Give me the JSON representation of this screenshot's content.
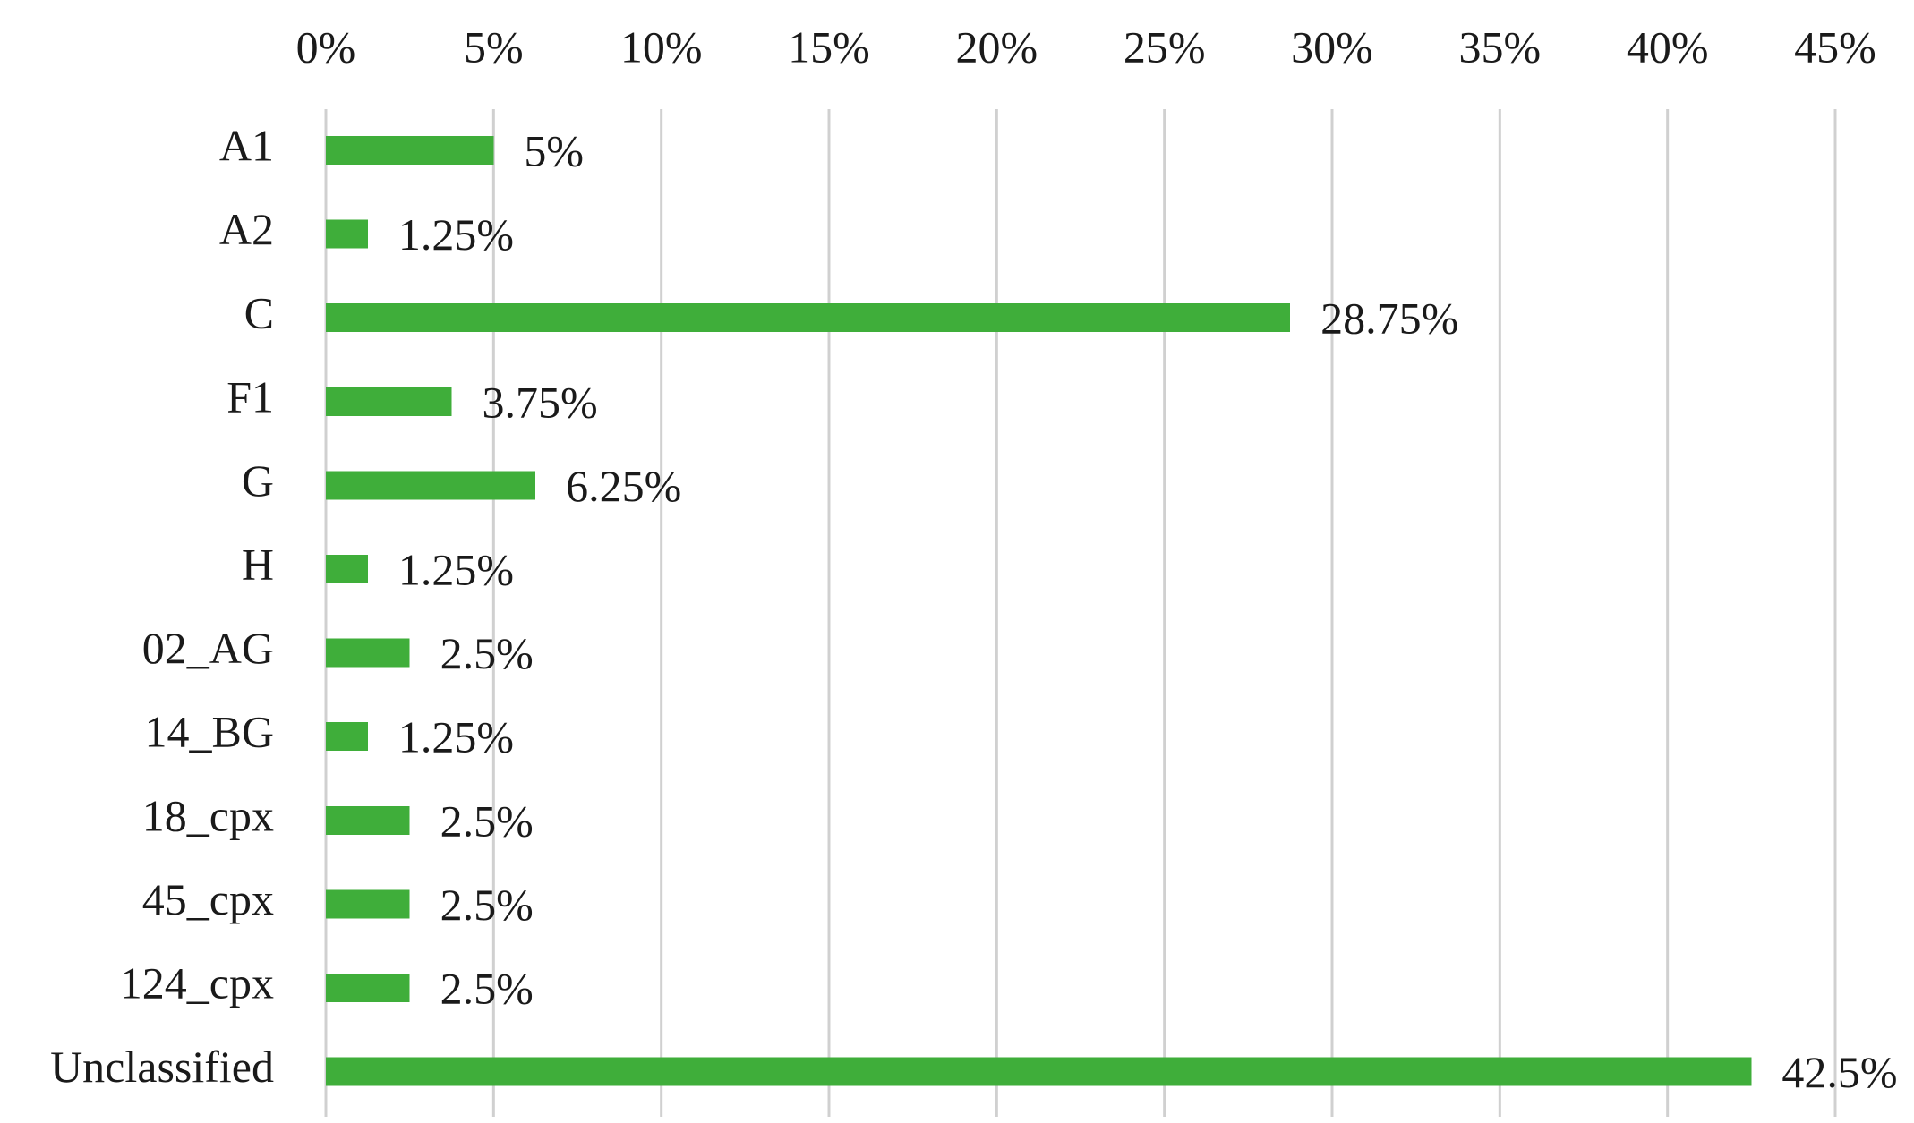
{
  "chart_data": {
    "type": "bar",
    "orientation": "horizontal",
    "axis_position": "top",
    "grid": true,
    "legend": "none",
    "bar_color": "#3fae3a",
    "grid_color": "#d0d0d0",
    "text_color": "#1a1a1a",
    "categories": [
      "A1",
      "A2",
      "C",
      "F1",
      "G",
      "H",
      "02_AG",
      "14_BG",
      "18_cpx",
      "45_cpx",
      "124_cpx",
      "Unclassified"
    ],
    "values": [
      5,
      1.25,
      28.75,
      3.75,
      6.25,
      1.25,
      2.5,
      1.25,
      2.5,
      2.5,
      2.5,
      42.5
    ],
    "data_labels": [
      "5%",
      "1.25%",
      "28.75%",
      "3.75%",
      "6.25%",
      "1.25%",
      "2.5%",
      "1.25%",
      "2.5%",
      "2.5%",
      "2.5%",
      "42.5%"
    ],
    "ticks": [
      0,
      5,
      10,
      15,
      20,
      25,
      30,
      35,
      40,
      45
    ],
    "tick_labels": [
      "0%",
      "5%",
      "10%",
      "15%",
      "20%",
      "25%",
      "30%",
      "35%",
      "40%",
      "45%"
    ],
    "xlim": [
      0,
      45
    ],
    "title": "",
    "xlabel": "",
    "ylabel": ""
  }
}
